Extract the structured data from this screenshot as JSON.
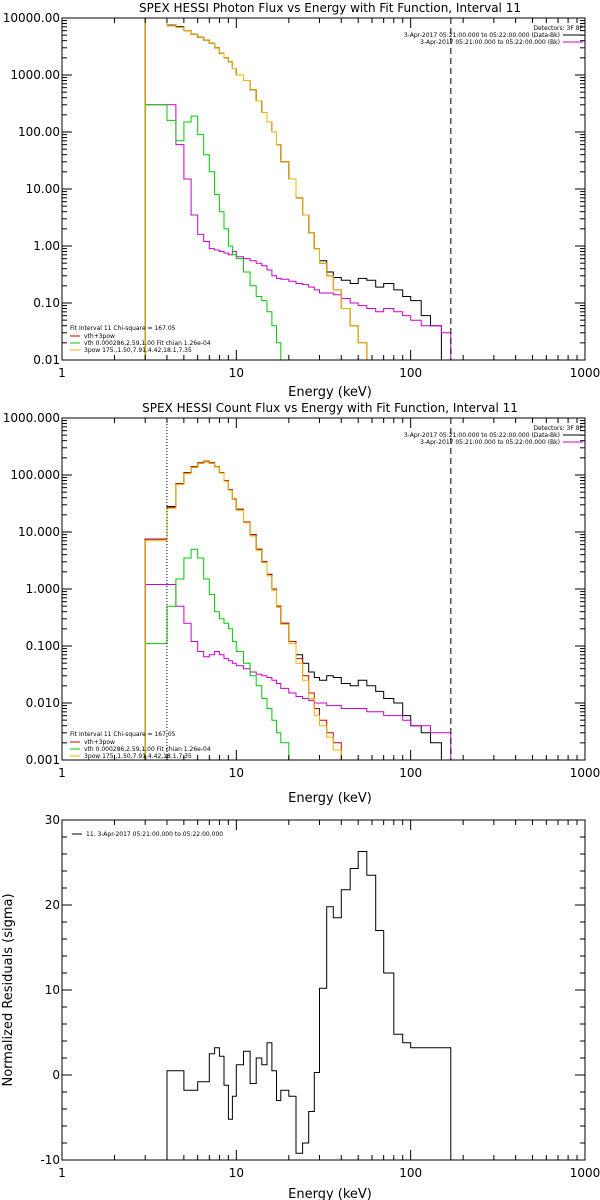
{
  "chart_data": [
    {
      "id": "photon",
      "type": "line",
      "title": "SPEX HESSI Photon Flux vs Energy with Fit Function, Interval 11",
      "xlabel": "Energy (keV)",
      "ylabel": "",
      "xscale": "log",
      "yscale": "log",
      "xlim": [
        1,
        1000
      ],
      "ylim": [
        0.01,
        10000
      ],
      "xticks": [
        1,
        10,
        100,
        1000
      ],
      "xtick_labels": [
        "1",
        "10",
        "100",
        "1000"
      ],
      "yticks": [
        0.01,
        0.1,
        1,
        10,
        100,
        1000,
        10000
      ],
      "ytick_labels": [
        "0.01",
        "0.10",
        "1.00",
        "10.00",
        "100.00",
        "1000.00",
        "10000.00"
      ],
      "vlines": [
        {
          "x": 170,
          "style": "dashed"
        }
      ],
      "legend_top_right": {
        "header": "Detectors: 3F 8F",
        "entries": [
          {
            "label": "3-Apr-2017 05:21:00.000 to 05:22:00.000 (Data-Bk)",
            "color": "#000000"
          },
          {
            "label": "3-Apr-2017 05:21:00.000 to 05:22:00.000 (Bk)",
            "color": "#cc00cc"
          }
        ]
      },
      "legend_bottom_left": {
        "header": "Fit Interval 11    Chi-square = 167.05",
        "entries": [
          {
            "label": "vth+3pow",
            "color": "#cc0000"
          },
          {
            "label": "vth 0.000286,2.59,1.00   Fit chian 1.26e-04",
            "color": "#00cc00"
          },
          {
            "label": "3pow 175.,1.50,7.91,4.42,18.1,7.35",
            "color": "#e6b800"
          }
        ]
      },
      "x_edges": [
        3.0,
        4.0,
        4.5,
        5.0,
        5.5,
        6.0,
        6.5,
        7.0,
        7.5,
        8.0,
        8.5,
        9.0,
        9.5,
        10,
        11,
        12,
        13,
        14,
        15,
        16,
        17,
        18,
        20,
        22,
        24,
        26,
        28,
        30,
        33,
        36,
        40,
        45,
        50,
        56,
        63,
        70,
        80,
        90,
        100,
        115,
        130,
        150,
        170
      ],
      "series": [
        {
          "name": "Data-Bk",
          "color": "#000000",
          "values": [
            10000,
            7500,
            7000,
            6000,
            5200,
            4600,
            4100,
            3600,
            3000,
            2400,
            2000,
            1700,
            1300,
            1000,
            800,
            550,
            350,
            220,
            150,
            100,
            60,
            30,
            15,
            7,
            3.5,
            1.7,
            0.9,
            0.55,
            0.35,
            0.28,
            0.25,
            0.22,
            0.27,
            0.25,
            0.19,
            0.22,
            0.17,
            0.13,
            0.11,
            0.06,
            0.04,
            0.01
          ]
        },
        {
          "name": "Bk",
          "color": "#cc00cc",
          "values": [
            300,
            300,
            60,
            15,
            3.5,
            1.6,
            1.2,
            0.9,
            0.85,
            0.8,
            0.75,
            0.7,
            0.8,
            0.65,
            0.6,
            0.55,
            0.5,
            0.45,
            0.38,
            0.3,
            0.27,
            0.26,
            0.24,
            0.22,
            0.21,
            0.19,
            0.17,
            0.15,
            0.15,
            0.14,
            0.12,
            0.1,
            0.09,
            0.08,
            0.07,
            0.08,
            0.07,
            0.06,
            0.05,
            0.04,
            0.04,
            0.03
          ]
        },
        {
          "name": "vth+3pow",
          "color": "#cc0000",
          "values": [
            10000,
            7300,
            6800,
            6000,
            5200,
            4600,
            4100,
            3600,
            3000,
            2400,
            2000,
            1700,
            1300,
            1000,
            800,
            550,
            350,
            220,
            150,
            100,
            60,
            30,
            15,
            7,
            3.5,
            1.7,
            0.9,
            0.5,
            0.3,
            0.17,
            0.08,
            0.04,
            0.02,
            0.01,
            0.01,
            0.01,
            0.01,
            0.01,
            0.01,
            0.01,
            0.01,
            0.01
          ]
        },
        {
          "name": "vth",
          "color": "#00cc00",
          "values": [
            300,
            160,
            70,
            150,
            190,
            90,
            40,
            20,
            8,
            4,
            2,
            1,
            0.7,
            0.6,
            0.35,
            0.2,
            0.13,
            0.11,
            0.07,
            0.04,
            0.02,
            0.01,
            0.01,
            0.01,
            0.01,
            0.01,
            0.01,
            0.01,
            0.01,
            0.01,
            0.01,
            0.01,
            0.01,
            0.01,
            0.01,
            0.01,
            0.01,
            0.01,
            0.01,
            0.01,
            0.01,
            0.01
          ]
        },
        {
          "name": "3pow",
          "color": "#e6b800",
          "values": [
            10000,
            7300,
            6800,
            6000,
            5200,
            4600,
            4100,
            3600,
            3000,
            2400,
            2000,
            1700,
            1300,
            1000,
            800,
            550,
            350,
            220,
            150,
            100,
            60,
            30,
            15,
            7,
            3.5,
            1.7,
            0.9,
            0.5,
            0.3,
            0.17,
            0.08,
            0.04,
            0.02,
            0.01,
            0.01,
            0.01,
            0.01,
            0.01,
            0.01,
            0.01,
            0.01,
            0.01
          ]
        }
      ]
    },
    {
      "id": "count",
      "type": "line",
      "title": "SPEX HESSI Count Flux vs Energy with Fit Function, Interval 11",
      "xlabel": "Energy (keV)",
      "ylabel": "",
      "xscale": "log",
      "yscale": "log",
      "xlim": [
        1,
        1000
      ],
      "ylim": [
        0.001,
        1000
      ],
      "xticks": [
        1,
        10,
        100,
        1000
      ],
      "xtick_labels": [
        "1",
        "10",
        "100",
        "1000"
      ],
      "yticks": [
        0.001,
        0.01,
        0.1,
        1,
        10,
        100,
        1000
      ],
      "ytick_labels": [
        "0.001",
        "0.010",
        "0.100",
        "1.000",
        "10.000",
        "100.000",
        "1000.000"
      ],
      "vlines": [
        {
          "x": 4,
          "style": "dotted"
        },
        {
          "x": 170,
          "style": "dashed"
        }
      ],
      "legend_top_right": {
        "header": "Detectors: 3F 8F",
        "entries": [
          {
            "label": "3-Apr-2017 05:21:00.000 to 05:22:00.000 (Data-Bk)",
            "color": "#000000"
          },
          {
            "label": "3-Apr-2017 05:21:00.000 to 05:22:00.000 (Bk)",
            "color": "#cc00cc"
          }
        ]
      },
      "legend_bottom_left": {
        "header": "Fit Interval 11    Chi-square = 167.05",
        "entries": [
          {
            "label": "vth+3pow",
            "color": "#cc0000"
          },
          {
            "label": "vth 0.000286,2.59,1.00   Fit chian 1.26e-04",
            "color": "#00cc00"
          },
          {
            "label": "3pow 175.,1.50,7.91,4.42,18.1,7.35",
            "color": "#e6b800"
          }
        ]
      },
      "x_edges": [
        3.0,
        4.0,
        4.5,
        5.0,
        5.5,
        6.0,
        6.5,
        7.0,
        7.5,
        8.0,
        8.5,
        9.0,
        9.5,
        10,
        11,
        12,
        13,
        14,
        15,
        16,
        17,
        18,
        20,
        22,
        24,
        26,
        28,
        30,
        33,
        36,
        40,
        45,
        50,
        56,
        63,
        70,
        80,
        90,
        100,
        115,
        130,
        150,
        170
      ],
      "series": [
        {
          "name": "Data-Bk",
          "color": "#000000",
          "values": [
            7.5,
            28,
            70,
            110,
            140,
            160,
            170,
            160,
            140,
            110,
            80,
            55,
            38,
            25,
            15,
            9,
            5,
            3,
            1.8,
            1.0,
            0.5,
            0.25,
            0.12,
            0.07,
            0.05,
            0.035,
            0.028,
            0.025,
            0.03,
            0.028,
            0.022,
            0.02,
            0.025,
            0.02,
            0.016,
            0.012,
            0.01,
            0.006,
            0.004,
            0.003,
            0.002,
            0.001
          ]
        },
        {
          "name": "Bk",
          "color": "#cc00cc",
          "values": [
            1.2,
            1.2,
            0.5,
            0.25,
            0.12,
            0.08,
            0.065,
            0.07,
            0.08,
            0.07,
            0.06,
            0.055,
            0.05,
            0.045,
            0.04,
            0.035,
            0.032,
            0.03,
            0.028,
            0.025,
            0.022,
            0.018,
            0.015,
            0.013,
            0.012,
            0.011,
            0.01,
            0.01,
            0.009,
            0.009,
            0.008,
            0.008,
            0.008,
            0.007,
            0.007,
            0.006,
            0.006,
            0.005,
            0.004,
            0.004,
            0.003,
            0.003
          ]
        },
        {
          "name": "vth+3pow",
          "color": "#cc0000",
          "values": [
            7.5,
            27,
            70,
            110,
            140,
            165,
            175,
            165,
            140,
            110,
            80,
            55,
            38,
            25,
            15,
            9,
            5,
            3,
            1.8,
            1.0,
            0.5,
            0.25,
            0.12,
            0.06,
            0.03,
            0.015,
            0.008,
            0.005,
            0.003,
            0.002,
            0.001,
            0.001,
            0.001,
            0.001,
            0.001,
            0.001,
            0.001,
            0.001,
            0.001,
            0.001,
            0.001,
            0.001
          ]
        },
        {
          "name": "vth",
          "color": "#00cc00",
          "values": [
            0.11,
            0.5,
            1.5,
            3.5,
            5.0,
            3.5,
            1.5,
            0.8,
            0.4,
            0.3,
            0.25,
            0.2,
            0.12,
            0.08,
            0.05,
            0.03,
            0.02,
            0.012,
            0.008,
            0.005,
            0.003,
            0.002,
            0.001,
            0.001,
            0.001,
            0.001,
            0.001,
            0.001,
            0.001,
            0.001,
            0.001,
            0.001,
            0.001,
            0.001,
            0.001,
            0.001,
            0.001,
            0.001,
            0.001,
            0.001,
            0.001,
            0.001
          ]
        },
        {
          "name": "3pow",
          "color": "#e6b800",
          "values": [
            7.0,
            26,
            68,
            105,
            135,
            160,
            170,
            160,
            138,
            108,
            78,
            54,
            37,
            24,
            14.5,
            8.5,
            4.8,
            2.9,
            1.7,
            0.95,
            0.48,
            0.24,
            0.11,
            0.05,
            0.025,
            0.012,
            0.006,
            0.004,
            0.0025,
            0.0015,
            0.001,
            0.001,
            0.001,
            0.001,
            0.001,
            0.001,
            0.001,
            0.001,
            0.001,
            0.001,
            0.001,
            0.001
          ]
        }
      ]
    },
    {
      "id": "residuals",
      "type": "line",
      "title": "",
      "xlabel": "Energy (keV)",
      "ylabel": "Normalized Residuals (sigma)",
      "xscale": "log",
      "yscale": "linear",
      "xlim": [
        1,
        1000
      ],
      "ylim": [
        -10,
        30
      ],
      "xticks": [
        1,
        10,
        100,
        1000
      ],
      "xtick_labels": [
        "1",
        "10",
        "100",
        "1000"
      ],
      "yticks": [
        -10,
        0,
        10,
        20,
        30
      ],
      "ytick_labels": [
        "-10",
        "0",
        "10",
        "20",
        "30"
      ],
      "legend_top_left": {
        "entries": [
          {
            "label": "11.  3-Apr-2017 05:21:00.000 to 05:22:00.000",
            "color": "#000000"
          }
        ]
      },
      "x_edges": [
        4.0,
        4.5,
        5.0,
        5.5,
        6.0,
        6.5,
        7.0,
        7.5,
        8.0,
        8.5,
        9.0,
        9.5,
        10,
        11,
        12,
        13,
        14,
        15,
        16,
        17,
        18,
        20,
        22,
        24,
        26,
        28,
        30,
        33,
        36,
        40,
        45,
        50,
        56,
        63,
        70,
        80,
        90,
        100,
        115,
        130,
        150,
        170
      ],
      "series": [
        {
          "name": "Residuals",
          "color": "#000000",
          "values": [
            0.5,
            0.5,
            -1.8,
            -1.8,
            -0.8,
            -0.8,
            2.5,
            3.2,
            2.2,
            -1.2,
            -5.2,
            -2.5,
            1.2,
            2.8,
            -1.0,
            2.0,
            1.2,
            3.8,
            0.5,
            -3.0,
            -1.8,
            -2.5,
            -9.2,
            -8.0,
            -4.3,
            0.3,
            10.2,
            19.8,
            18.5,
            21.8,
            24.3,
            26.3,
            23.5,
            17.0,
            12.0,
            4.8,
            3.8,
            3.2,
            3.2,
            3.2,
            3.2
          ]
        }
      ]
    }
  ]
}
